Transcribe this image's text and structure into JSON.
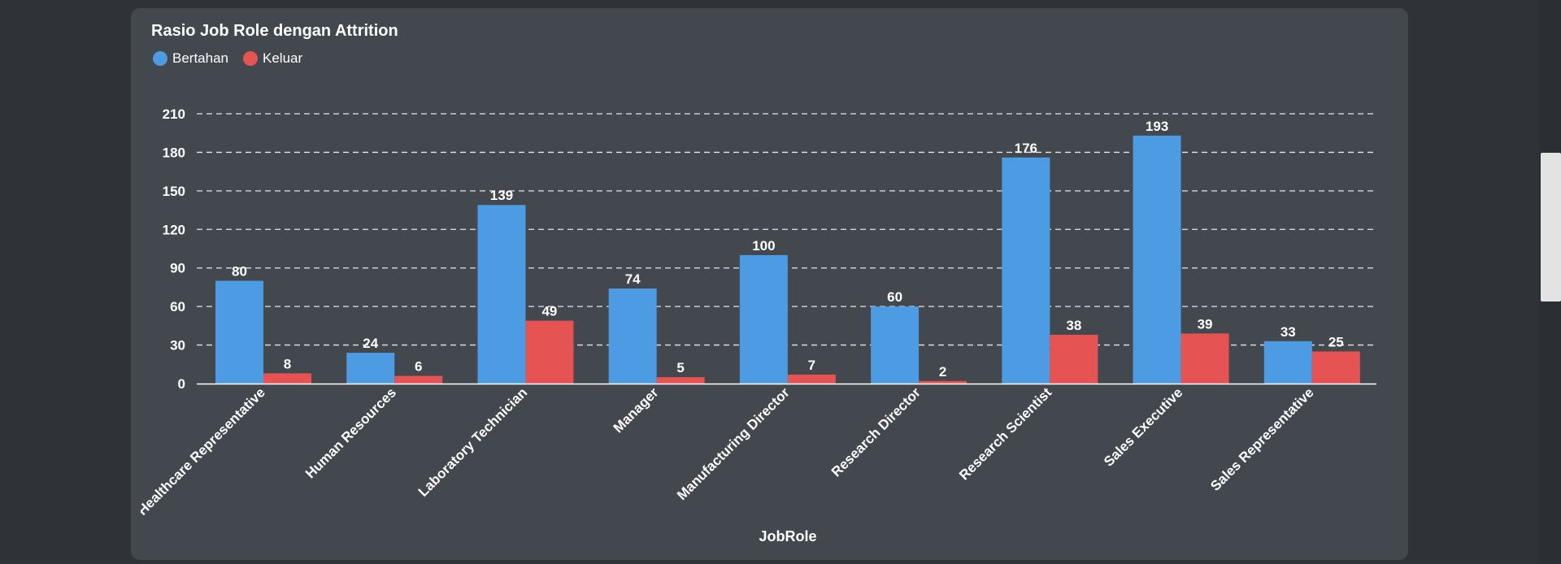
{
  "title": "Rasio Job Role dengan Attrition",
  "legend": [
    {
      "label": "Bertahan",
      "color": "#4c9be3"
    },
    {
      "label": "Keluar",
      "color": "#e55353"
    }
  ],
  "chart_data": {
    "type": "bar",
    "title": "Rasio Job Role dengan Attrition",
    "xlabel": "JobRole",
    "ylabel": "",
    "ylim": [
      0,
      210
    ],
    "yticks": [
      0,
      30,
      60,
      90,
      120,
      150,
      180,
      210
    ],
    "grid": true,
    "legend_position": "top-left",
    "categories": [
      "Healthcare Representative",
      "Human Resources",
      "Laboratory Technician",
      "Manager",
      "Manufacturing Director",
      "Research Director",
      "Research Scientist",
      "Sales Executive",
      "Sales Representative"
    ],
    "series": [
      {
        "name": "Bertahan",
        "color": "#4c9be3",
        "values": [
          80,
          24,
          139,
          74,
          100,
          60,
          176,
          193,
          33
        ]
      },
      {
        "name": "Keluar",
        "color": "#e55353",
        "values": [
          8,
          6,
          49,
          5,
          7,
          2,
          38,
          39,
          25
        ]
      }
    ]
  }
}
